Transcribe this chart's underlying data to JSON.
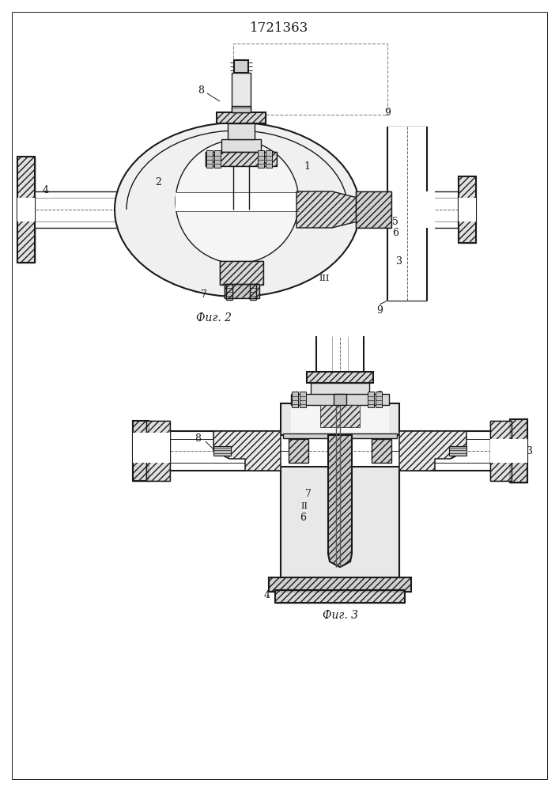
{
  "title": "1721363",
  "title_fontsize": 12,
  "bg_color": "#ffffff",
  "line_color": "#1a1a1a",
  "fig2_label": "Фиг. 2",
  "fig3_label": "Фиг. 3",
  "label_fontsize": 10
}
